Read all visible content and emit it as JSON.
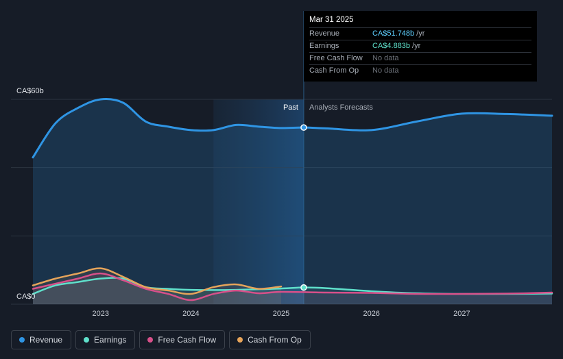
{
  "chart_data": {
    "type": "line",
    "y_axis": {
      "ticks": [
        "CA$60b",
        "CA$0"
      ],
      "ylim": [
        0,
        60
      ]
    },
    "x_axis": {
      "ticks": [
        "2023",
        "2024",
        "2025",
        "2026",
        "2027"
      ],
      "range": [
        2022.25,
        2028.0
      ]
    },
    "past_label": "Past",
    "forecast_label": "Analysts Forecasts",
    "divider_x": 2025.25,
    "shaded_from_x": 2024.25,
    "grid": true,
    "series": [
      {
        "name": "Revenue",
        "color": "#2f95e4",
        "area": true,
        "points": [
          [
            2022.25,
            43
          ],
          [
            2022.5,
            53
          ],
          [
            2022.75,
            57.5
          ],
          [
            2023.0,
            60
          ],
          [
            2023.25,
            59
          ],
          [
            2023.5,
            53.5
          ],
          [
            2023.75,
            52
          ],
          [
            2024.0,
            51
          ],
          [
            2024.25,
            51
          ],
          [
            2024.5,
            52.5
          ],
          [
            2024.75,
            52
          ],
          [
            2025.0,
            51.6
          ],
          [
            2025.25,
            51.748
          ],
          [
            2025.5,
            51.5
          ],
          [
            2026.0,
            51
          ],
          [
            2026.5,
            53.5
          ],
          [
            2027.0,
            55.8
          ],
          [
            2027.5,
            55.7
          ],
          [
            2028.0,
            55.2
          ]
        ]
      },
      {
        "name": "Earnings",
        "color": "#5fe0cb",
        "area": true,
        "points": [
          [
            2022.25,
            3
          ],
          [
            2022.5,
            5.5
          ],
          [
            2022.75,
            6.5
          ],
          [
            2023.0,
            7.5
          ],
          [
            2023.25,
            7.5
          ],
          [
            2023.5,
            5
          ],
          [
            2023.75,
            4.5
          ],
          [
            2024.0,
            4.2
          ],
          [
            2024.5,
            4.2
          ],
          [
            2025.0,
            4.6
          ],
          [
            2025.25,
            4.883
          ],
          [
            2025.5,
            4.7
          ],
          [
            2026.0,
            3.8
          ],
          [
            2026.5,
            3.2
          ],
          [
            2027.0,
            3.0
          ],
          [
            2027.5,
            3.0
          ],
          [
            2028.0,
            3.1
          ]
        ]
      },
      {
        "name": "Free Cash Flow",
        "color": "#d8508a",
        "area": true,
        "points": [
          [
            2022.25,
            4.5
          ],
          [
            2022.5,
            6
          ],
          [
            2022.75,
            7.5
          ],
          [
            2023.0,
            9
          ],
          [
            2023.25,
            7
          ],
          [
            2023.5,
            4.5
          ],
          [
            2023.75,
            3
          ],
          [
            2024.0,
            1.2
          ],
          [
            2024.25,
            3
          ],
          [
            2024.5,
            4
          ],
          [
            2024.75,
            3.2
          ],
          [
            2025.0,
            3.6
          ],
          [
            2025.5,
            3.4
          ],
          [
            2026.0,
            3.3
          ],
          [
            2026.5,
            3.0
          ],
          [
            2027.0,
            3.0
          ],
          [
            2027.5,
            3.1
          ],
          [
            2028.0,
            3.4
          ]
        ]
      },
      {
        "name": "Cash From Op",
        "color": "#e6a45a",
        "area": true,
        "points": [
          [
            2022.25,
            5.5
          ],
          [
            2022.5,
            7.5
          ],
          [
            2022.75,
            9
          ],
          [
            2023.0,
            10.5
          ],
          [
            2023.25,
            8
          ],
          [
            2023.5,
            5
          ],
          [
            2023.75,
            4
          ],
          [
            2024.0,
            3
          ],
          [
            2024.25,
            5
          ],
          [
            2024.5,
            5.8
          ],
          [
            2024.75,
            4.5
          ],
          [
            2025.0,
            5.2
          ]
        ]
      }
    ],
    "tooltip": {
      "date": "Mar 31 2025",
      "rows": [
        {
          "label": "Revenue",
          "value": "CA$51.748b",
          "unit": "/yr",
          "color": "#5fd0ff"
        },
        {
          "label": "Earnings",
          "value": "CA$4.883b",
          "unit": "/yr",
          "color": "#5fe0cb"
        },
        {
          "label": "Free Cash Flow",
          "value": "No data",
          "unit": ""
        },
        {
          "label": "Cash From Op",
          "value": "No data",
          "unit": ""
        }
      ]
    },
    "legend": [
      {
        "label": "Revenue",
        "color": "#2f95e4"
      },
      {
        "label": "Earnings",
        "color": "#5fe0cb"
      },
      {
        "label": "Free Cash Flow",
        "color": "#d8508a"
      },
      {
        "label": "Cash From Op",
        "color": "#e6a45a"
      }
    ]
  }
}
